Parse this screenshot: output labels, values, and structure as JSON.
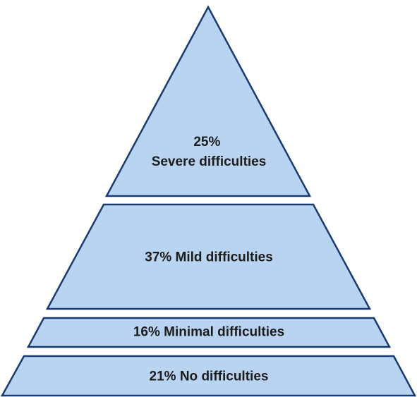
{
  "colors": {
    "tier_fill": "#b9d4f1",
    "tier_stroke": "#183c72",
    "label_text": "#1c1c1c"
  },
  "tiers": [
    {
      "percent": 25,
      "lines": [
        "25%",
        "Severe difficulties"
      ]
    },
    {
      "percent": 37,
      "lines": [
        "37% Mild difficulties"
      ]
    },
    {
      "percent": 16,
      "lines": [
        "16% Minimal difficulties"
      ]
    },
    {
      "percent": 21,
      "lines": [
        "21% No difficulties"
      ]
    }
  ]
}
